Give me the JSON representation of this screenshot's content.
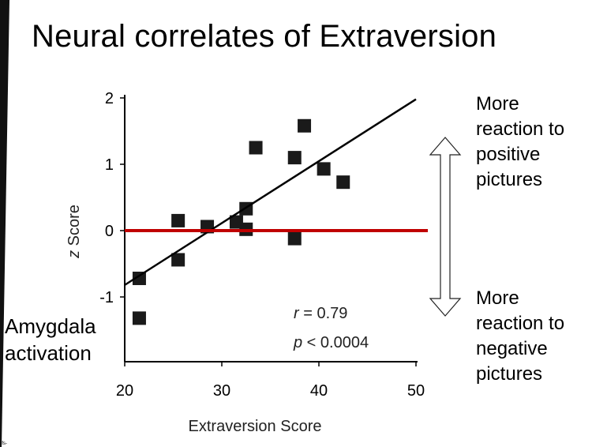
{
  "slide": {
    "title": "Neural correlates of Extraversion",
    "annotation_positive": [
      "More",
      "reaction to",
      "positive",
      "pictures"
    ],
    "annotation_negative": [
      "More",
      "reaction to",
      "negative",
      "pictures"
    ],
    "amygdala_label": [
      "Amygdala",
      "activation"
    ],
    "corner_mark": "ifs-"
  },
  "chart_data": {
    "type": "scatter",
    "xlabel": "Extraversion Score",
    "ylabel": "z Score",
    "xlim": [
      20,
      50
    ],
    "ylim": [
      -2,
      2
    ],
    "xticks": [
      20,
      30,
      40,
      50
    ],
    "yticks": [
      2,
      1,
      0,
      -1
    ],
    "points": [
      {
        "x": 21.5,
        "y": -0.72
      },
      {
        "x": 21.5,
        "y": -1.32
      },
      {
        "x": 25.5,
        "y": 0.15
      },
      {
        "x": 25.5,
        "y": -0.44
      },
      {
        "x": 28.5,
        "y": 0.06
      },
      {
        "x": 31.5,
        "y": 0.13
      },
      {
        "x": 32.5,
        "y": 0.33
      },
      {
        "x": 32.5,
        "y": 0.02
      },
      {
        "x": 33.5,
        "y": 1.25
      },
      {
        "x": 37.5,
        "y": 1.1
      },
      {
        "x": 37.5,
        "y": -0.12
      },
      {
        "x": 38.5,
        "y": 1.58
      },
      {
        "x": 40.5,
        "y": 0.93
      },
      {
        "x": 42.5,
        "y": 0.73
      }
    ],
    "regression": {
      "x": [
        20,
        50
      ],
      "y": [
        -0.82,
        1.98
      ]
    },
    "reference_line": {
      "y": 0,
      "color": "#c00000"
    },
    "stats": {
      "r_label": "r",
      "r_value": " = 0.79",
      "p_label": "p",
      "p_value": " < 0.0004"
    },
    "marker_color": "#1a1a1a",
    "grid": false
  }
}
